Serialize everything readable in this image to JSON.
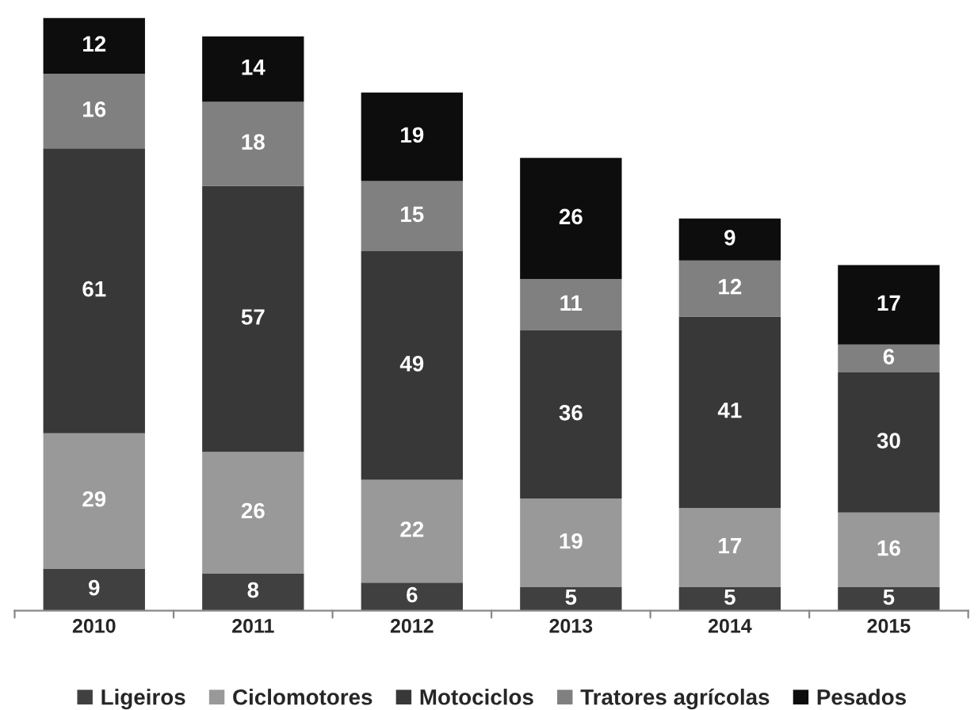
{
  "chart_data": {
    "type": "bar",
    "stacked": true,
    "data_labels": true,
    "categories": [
      "2010",
      "2011",
      "2012",
      "2013",
      "2014",
      "2015"
    ],
    "series": [
      {
        "name": "Ligeiros",
        "color": "#404040",
        "values": [
          9,
          8,
          6,
          5,
          5,
          5
        ]
      },
      {
        "name": "Ciclomotores",
        "color": "#999999",
        "values": [
          29,
          26,
          22,
          19,
          17,
          16
        ]
      },
      {
        "name": "Motociclos",
        "color": "#383838",
        "values": [
          61,
          57,
          49,
          36,
          41,
          30
        ]
      },
      {
        "name": "Tratores agrícolas",
        "color": "#808080",
        "values": [
          16,
          18,
          15,
          11,
          12,
          6
        ]
      },
      {
        "name": "Pesados",
        "color": "#0d0d0d",
        "values": [
          12,
          14,
          19,
          26,
          9,
          17
        ]
      }
    ],
    "legend": "bottom"
  }
}
